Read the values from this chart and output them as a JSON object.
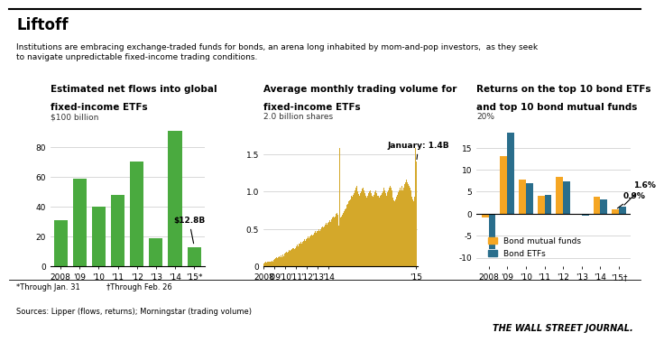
{
  "title": "Liftoff",
  "subtitle": "Institutions are embracing exchange-traded funds for bonds, an arena long inhabited by mom-and-pop investors,  as they seek\nto navigate unpredictable fixed-income trading conditions.",
  "footer_left": "Sources: Lipper (flows, returns); Morningstar (trading volume)",
  "footer_right": "THE WALL STREET JOURNAL.",
  "footnote1": "*Through Jan. 31",
  "footnote2": "†Through Feb. 26",
  "chart1": {
    "title1": "Estimated net flows into global",
    "title2": "fixed-income ETFs",
    "ylabel": "$100 billion",
    "years": [
      "2008",
      "'09",
      "'10",
      "'11",
      "'12",
      "'13",
      "'14",
      "'15*"
    ],
    "values": [
      31,
      59,
      40,
      48,
      70,
      19,
      91,
      12.8
    ],
    "bar_color": "#4aaa3f",
    "annotation": "$12.8B",
    "yticks": [
      0,
      20,
      40,
      60,
      80
    ],
    "ylim": [
      0,
      100
    ]
  },
  "chart2": {
    "title1": "Average monthly trading volume for",
    "title2": "fixed-income ETFs",
    "ylabel": "2.0 billion shares",
    "annotation": "January: 1.4B",
    "bar_color": "#d4a82a",
    "ylim": [
      0,
      2.0
    ],
    "yticks": [
      0,
      0.5,
      1.0,
      1.5
    ],
    "year_labels": [
      "2008",
      "'09",
      "'10",
      "'11",
      "'12",
      "'13",
      "'14",
      "'15"
    ]
  },
  "chart3": {
    "title1": "Returns on the top 10 bond ETFs",
    "title2": "and top 10 bond mutual funds",
    "ylabel": "20%",
    "years": [
      "2008",
      "'09",
      "'10",
      "'11",
      "'12",
      "'13",
      "'14",
      "'15†"
    ],
    "mutual_fund": [
      -0.8,
      13.2,
      7.8,
      4.0,
      8.3,
      -0.3,
      3.8,
      0.9
    ],
    "etf": [
      -8.0,
      18.5,
      7.0,
      4.2,
      7.3,
      -0.5,
      3.3,
      1.6
    ],
    "mutual_fund_color": "#f5a623",
    "etf_color": "#2a6e8c",
    "yticks": [
      -10,
      -5,
      0,
      5,
      10,
      15
    ],
    "ylim": [
      -12,
      22
    ]
  },
  "trading_volume_data": [
    0.04,
    0.05,
    0.06,
    0.05,
    0.06,
    0.07,
    0.06,
    0.07,
    0.06,
    0.08,
    0.07,
    0.09,
    0.1,
    0.11,
    0.13,
    0.11,
    0.12,
    0.14,
    0.12,
    0.15,
    0.13,
    0.16,
    0.14,
    0.17,
    0.18,
    0.2,
    0.18,
    0.2,
    0.22,
    0.21,
    0.22,
    0.23,
    0.24,
    0.25,
    0.23,
    0.25,
    0.27,
    0.29,
    0.27,
    0.3,
    0.31,
    0.33,
    0.31,
    0.33,
    0.34,
    0.36,
    0.34,
    0.37,
    0.38,
    0.4,
    0.38,
    0.4,
    0.42,
    0.43,
    0.41,
    0.43,
    0.45,
    0.47,
    0.45,
    0.47,
    0.48,
    0.5,
    0.48,
    0.5,
    0.52,
    0.54,
    0.52,
    0.54,
    0.56,
    0.58,
    0.56,
    0.58,
    0.6,
    0.62,
    0.6,
    0.63,
    0.65,
    0.67,
    0.65,
    0.67,
    0.7,
    0.72,
    0.69,
    0.55,
    1.58,
    0.65,
    0.67,
    0.69,
    0.72,
    0.74,
    0.76,
    0.78,
    0.82,
    0.84,
    0.87,
    0.89,
    0.9,
    0.95,
    0.93,
    0.96,
    0.98,
    1.02,
    1.05,
    1.08,
    1.0,
    0.97,
    0.94,
    0.98,
    1.0,
    1.04,
    1.06,
    1.02,
    0.98,
    0.95,
    0.92,
    0.94,
    0.98,
    1.0,
    1.02,
    0.98,
    0.95,
    0.93,
    0.96,
    0.99,
    1.02,
    0.98,
    0.95,
    0.94,
    0.92,
    0.94,
    0.96,
    0.98,
    1.0,
    1.05,
    1.02,
    0.98,
    0.95,
    0.99,
    1.02,
    1.05,
    1.08,
    1.06,
    1.02,
    0.92,
    0.89,
    0.87,
    0.9,
    0.93,
    0.96,
    0.99,
    1.02,
    1.06,
    1.02,
    1.08,
    1.02,
    1.05,
    1.1,
    1.13,
    1.16,
    1.13,
    1.1,
    1.08,
    1.05,
    1.02,
    0.93,
    0.9,
    0.87,
    0.93,
    1.58,
    1.4
  ]
}
